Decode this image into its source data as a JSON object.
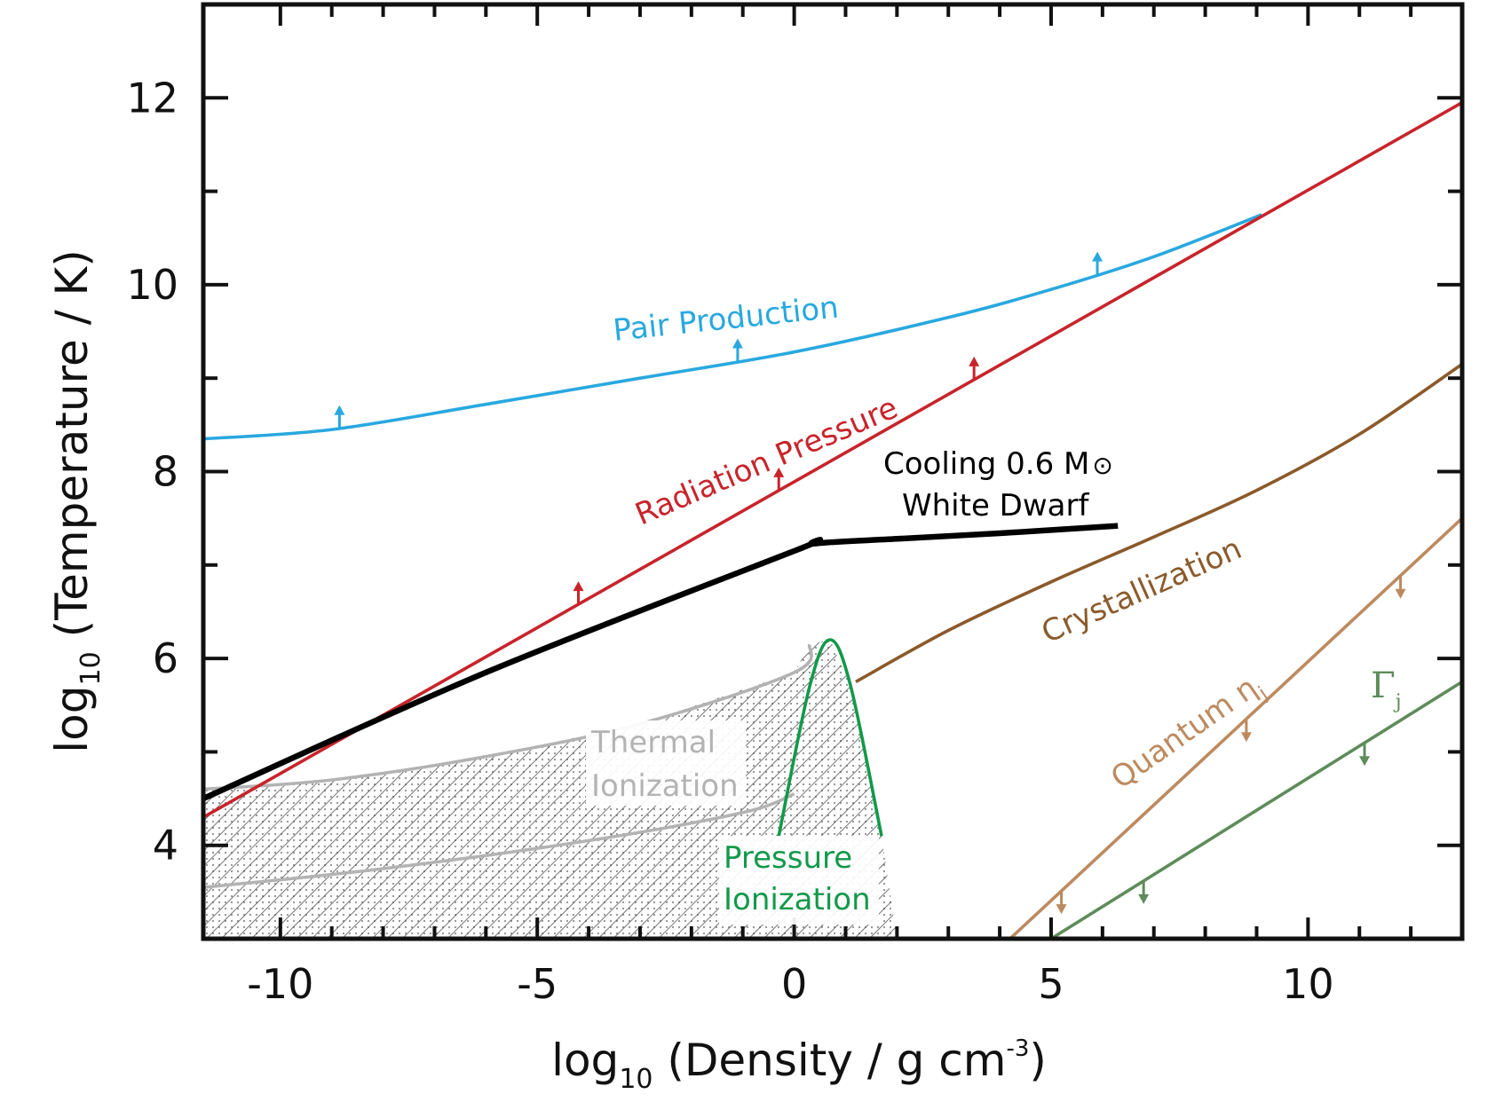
{
  "chart_data": {
    "type": "line",
    "xlabel": {
      "main": "log",
      "sub": "10",
      "rest": " (Density / g cm",
      "sup": "-3",
      "end": ")"
    },
    "ylabel": {
      "main": "log",
      "sub": "10",
      "rest": " (Temperature / K)"
    },
    "xlim": [
      -11.5,
      13
    ],
    "ylim": [
      3,
      13
    ],
    "x_ticks": [
      -10,
      -5,
      0,
      5,
      10
    ],
    "x_tick_labels": [
      "-10",
      "-5",
      "0",
      "5",
      "10"
    ],
    "y_ticks": [
      4,
      6,
      8,
      10,
      12
    ],
    "y_tick_labels": [
      "4",
      "6",
      "8",
      "10",
      "12"
    ],
    "grid": false,
    "legend": "none (direct labels)",
    "colors": {
      "pair_production": "#29a8df",
      "radiation_pressure": "#c8242b",
      "white_dwarf": "#000000",
      "crystallization": "#8b5a2b",
      "quantum": "#bd8a5f",
      "gamma": "#5e8c5a",
      "thermal_ionization": "#b3b3b3",
      "pressure_ionization": "#12994a"
    },
    "annotations": {
      "pair_production": "Pair Production",
      "radiation_pressure": "Radiation Pressure",
      "white_dwarf_line1": "Cooling 0.6 M",
      "white_dwarf_sun": "⊙",
      "white_dwarf_line2": "White Dwarf",
      "crystallization": "Crystallization",
      "quantum": "Quantum η",
      "quantum_sub": "j",
      "gamma": "Γ",
      "gamma_sub": "j",
      "thermal_line1": "Thermal",
      "thermal_line2": "Ionization",
      "pressure_line1": "Pressure",
      "pressure_line2": "Ionization"
    },
    "series": [
      {
        "key": "pair_production",
        "x": [
          -11.5,
          -9,
          -6,
          -3,
          0,
          3,
          5,
          7,
          9.1
        ],
        "y": [
          8.35,
          8.45,
          8.72,
          9.0,
          9.28,
          9.65,
          9.95,
          10.3,
          10.75
        ],
        "arrow_x": [
          -8.85,
          -1.1,
          5.9
        ],
        "arrow_dir": "up"
      },
      {
        "key": "radiation_pressure",
        "x": [
          -11.5,
          13
        ],
        "y": [
          4.3,
          11.95
        ],
        "arrow_x": [
          -4.2,
          -0.3,
          3.5
        ],
        "arrow_dir": "up"
      },
      {
        "key": "white_dwarf",
        "x": [
          -11.5,
          -6,
          0,
          0.4,
          2,
          4,
          6.3
        ],
        "y": [
          4.5,
          5.85,
          7.15,
          7.23,
          7.28,
          7.34,
          7.42
        ]
      },
      {
        "key": "crystallization",
        "x": [
          1.2,
          3,
          5,
          7,
          9,
          11,
          13
        ],
        "y": [
          5.75,
          6.3,
          6.82,
          7.3,
          7.8,
          8.4,
          9.15
        ]
      },
      {
        "key": "quantum",
        "x": [
          4.2,
          13
        ],
        "y": [
          3.0,
          7.5
        ],
        "arrow_x": [
          5.2,
          8.8,
          11.8
        ],
        "arrow_dir": "down"
      },
      {
        "key": "gamma",
        "x": [
          5.0,
          13
        ],
        "y": [
          3.0,
          5.75
        ],
        "arrow_x": [
          6.8,
          11.1
        ],
        "arrow_dir": "down"
      },
      {
        "key": "thermal_ionization_upper",
        "x": [
          -11.5,
          -9,
          -6,
          -3,
          0,
          0.3
        ],
        "y": [
          4.6,
          4.7,
          4.95,
          5.3,
          5.85,
          6.15
        ]
      },
      {
        "key": "thermal_ionization_lower",
        "x": [
          -11.5,
          -8,
          -4,
          -1,
          0
        ],
        "y": [
          3.55,
          3.75,
          4.05,
          4.35,
          4.55
        ]
      },
      {
        "key": "pressure_ionization",
        "x": [
          -0.3,
          0.3,
          0.7,
          1.1,
          1.7
        ],
        "y": [
          4.1,
          5.7,
          6.2,
          5.7,
          4.1
        ]
      }
    ]
  }
}
